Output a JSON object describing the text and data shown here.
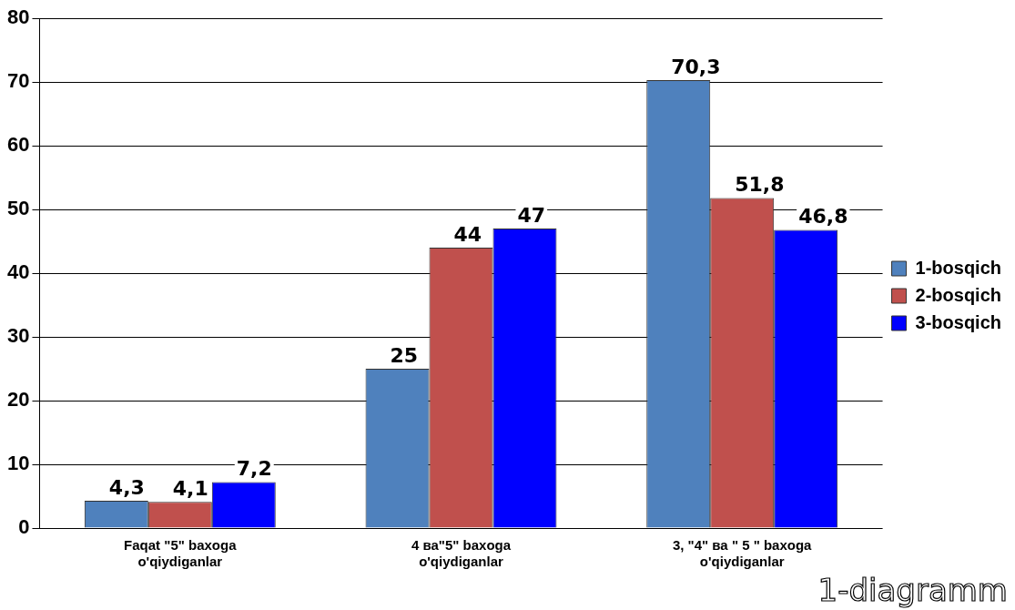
{
  "chart_data": {
    "type": "bar",
    "categories": [
      "Faqat \"5\" baxoga o'qiydiganlar",
      "4 ва\"5\" baxoga o'qiydiganlar",
      "3, \"4\" ва \" 5 \" baxoga o'qiydiganlar"
    ],
    "series": [
      {
        "name": "1-bosqich",
        "color": "#4f81bd",
        "values": [
          4.3,
          25,
          70.3
        ],
        "value_labels": [
          "4,3",
          "25",
          "70,3"
        ]
      },
      {
        "name": "2-bosqich",
        "color": "#c0504d",
        "values": [
          4.1,
          44,
          51.8
        ],
        "value_labels": [
          "4,1",
          "44",
          "51,8"
        ]
      },
      {
        "name": "3-bosqich",
        "color": "#0000ff",
        "values": [
          7.2,
          47,
          46.8
        ],
        "value_labels": [
          "7,2",
          "47",
          "46,8"
        ]
      }
    ],
    "ylim": [
      0,
      80
    ],
    "yticks": [
      0,
      10,
      20,
      30,
      40,
      50,
      60,
      70,
      80
    ],
    "grid": "y",
    "legend": "right",
    "annotations": [
      "1-diagramm"
    ]
  }
}
